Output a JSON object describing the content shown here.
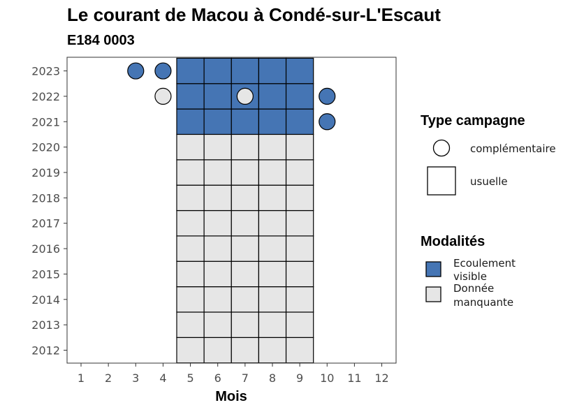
{
  "chart_data": {
    "type": "heatmap",
    "title": "Le courant de Macou à Condé-sur-L'Escaut",
    "subtitle": "E184 0003",
    "xlabel": "Mois",
    "ylabel": "",
    "x_ticks": [
      "1",
      "2",
      "3",
      "4",
      "5",
      "6",
      "7",
      "8",
      "9",
      "10",
      "11",
      "12"
    ],
    "y_ticks": [
      "2012",
      "2013",
      "2014",
      "2015",
      "2016",
      "2017",
      "2018",
      "2019",
      "2020",
      "2021",
      "2022",
      "2023"
    ],
    "colors": {
      "Ecoulement visible": "#4575b4",
      "Donnée manquante": "#e6e6e6"
    },
    "legend_type": {
      "title": "Type campagne",
      "items": [
        {
          "label": "complémentaire",
          "shape": "circle"
        },
        {
          "label": "usuelle",
          "shape": "square"
        }
      ]
    },
    "legend_modalites": {
      "title": "Modalités",
      "items": [
        {
          "label_lines": [
            "Ecoulement",
            "visible"
          ],
          "key": "Ecoulement visible"
        },
        {
          "label_lines": [
            "Donnée",
            "manquante"
          ],
          "key": "Donnée manquante"
        }
      ]
    },
    "usual_campaigns": [
      {
        "year": 2012,
        "months": [
          5,
          6,
          7,
          8,
          9
        ],
        "modalite": "Donnée manquante"
      },
      {
        "year": 2013,
        "months": [
          5,
          6,
          7,
          8,
          9
        ],
        "modalite": "Donnée manquante"
      },
      {
        "year": 2014,
        "months": [
          5,
          6,
          7,
          8,
          9
        ],
        "modalite": "Donnée manquante"
      },
      {
        "year": 2015,
        "months": [
          5,
          6,
          7,
          8,
          9
        ],
        "modalite": "Donnée manquante"
      },
      {
        "year": 2016,
        "months": [
          5,
          6,
          7,
          8,
          9
        ],
        "modalite": "Donnée manquante"
      },
      {
        "year": 2017,
        "months": [
          5,
          6,
          7,
          8,
          9
        ],
        "modalite": "Donnée manquante"
      },
      {
        "year": 2018,
        "months": [
          5,
          6,
          7,
          8,
          9
        ],
        "modalite": "Donnée manquante"
      },
      {
        "year": 2019,
        "months": [
          5,
          6,
          7,
          8,
          9
        ],
        "modalite": "Donnée manquante"
      },
      {
        "year": 2020,
        "months": [
          5,
          6,
          7,
          8,
          9
        ],
        "modalite": "Donnée manquante"
      },
      {
        "year": 2021,
        "months": [
          5,
          6,
          7,
          8,
          9
        ],
        "modalite": "Ecoulement visible"
      },
      {
        "year": 2022,
        "months": [
          5,
          6,
          7,
          8,
          9
        ],
        "modalite": "Ecoulement visible"
      },
      {
        "year": 2023,
        "months": [
          5,
          6,
          7,
          8,
          9
        ],
        "modalite": "Ecoulement visible"
      }
    ],
    "complementary_campaigns": [
      {
        "year": 2023,
        "month": 3,
        "modalite": "Ecoulement visible"
      },
      {
        "year": 2023,
        "month": 4,
        "modalite": "Ecoulement visible"
      },
      {
        "year": 2022,
        "month": 4,
        "modalite": "Donnée manquante"
      },
      {
        "year": 2022,
        "month": 7,
        "modalite": "Donnée manquante"
      },
      {
        "year": 2022,
        "month": 10,
        "modalite": "Ecoulement visible"
      },
      {
        "year": 2021,
        "month": 10,
        "modalite": "Ecoulement visible"
      }
    ]
  }
}
